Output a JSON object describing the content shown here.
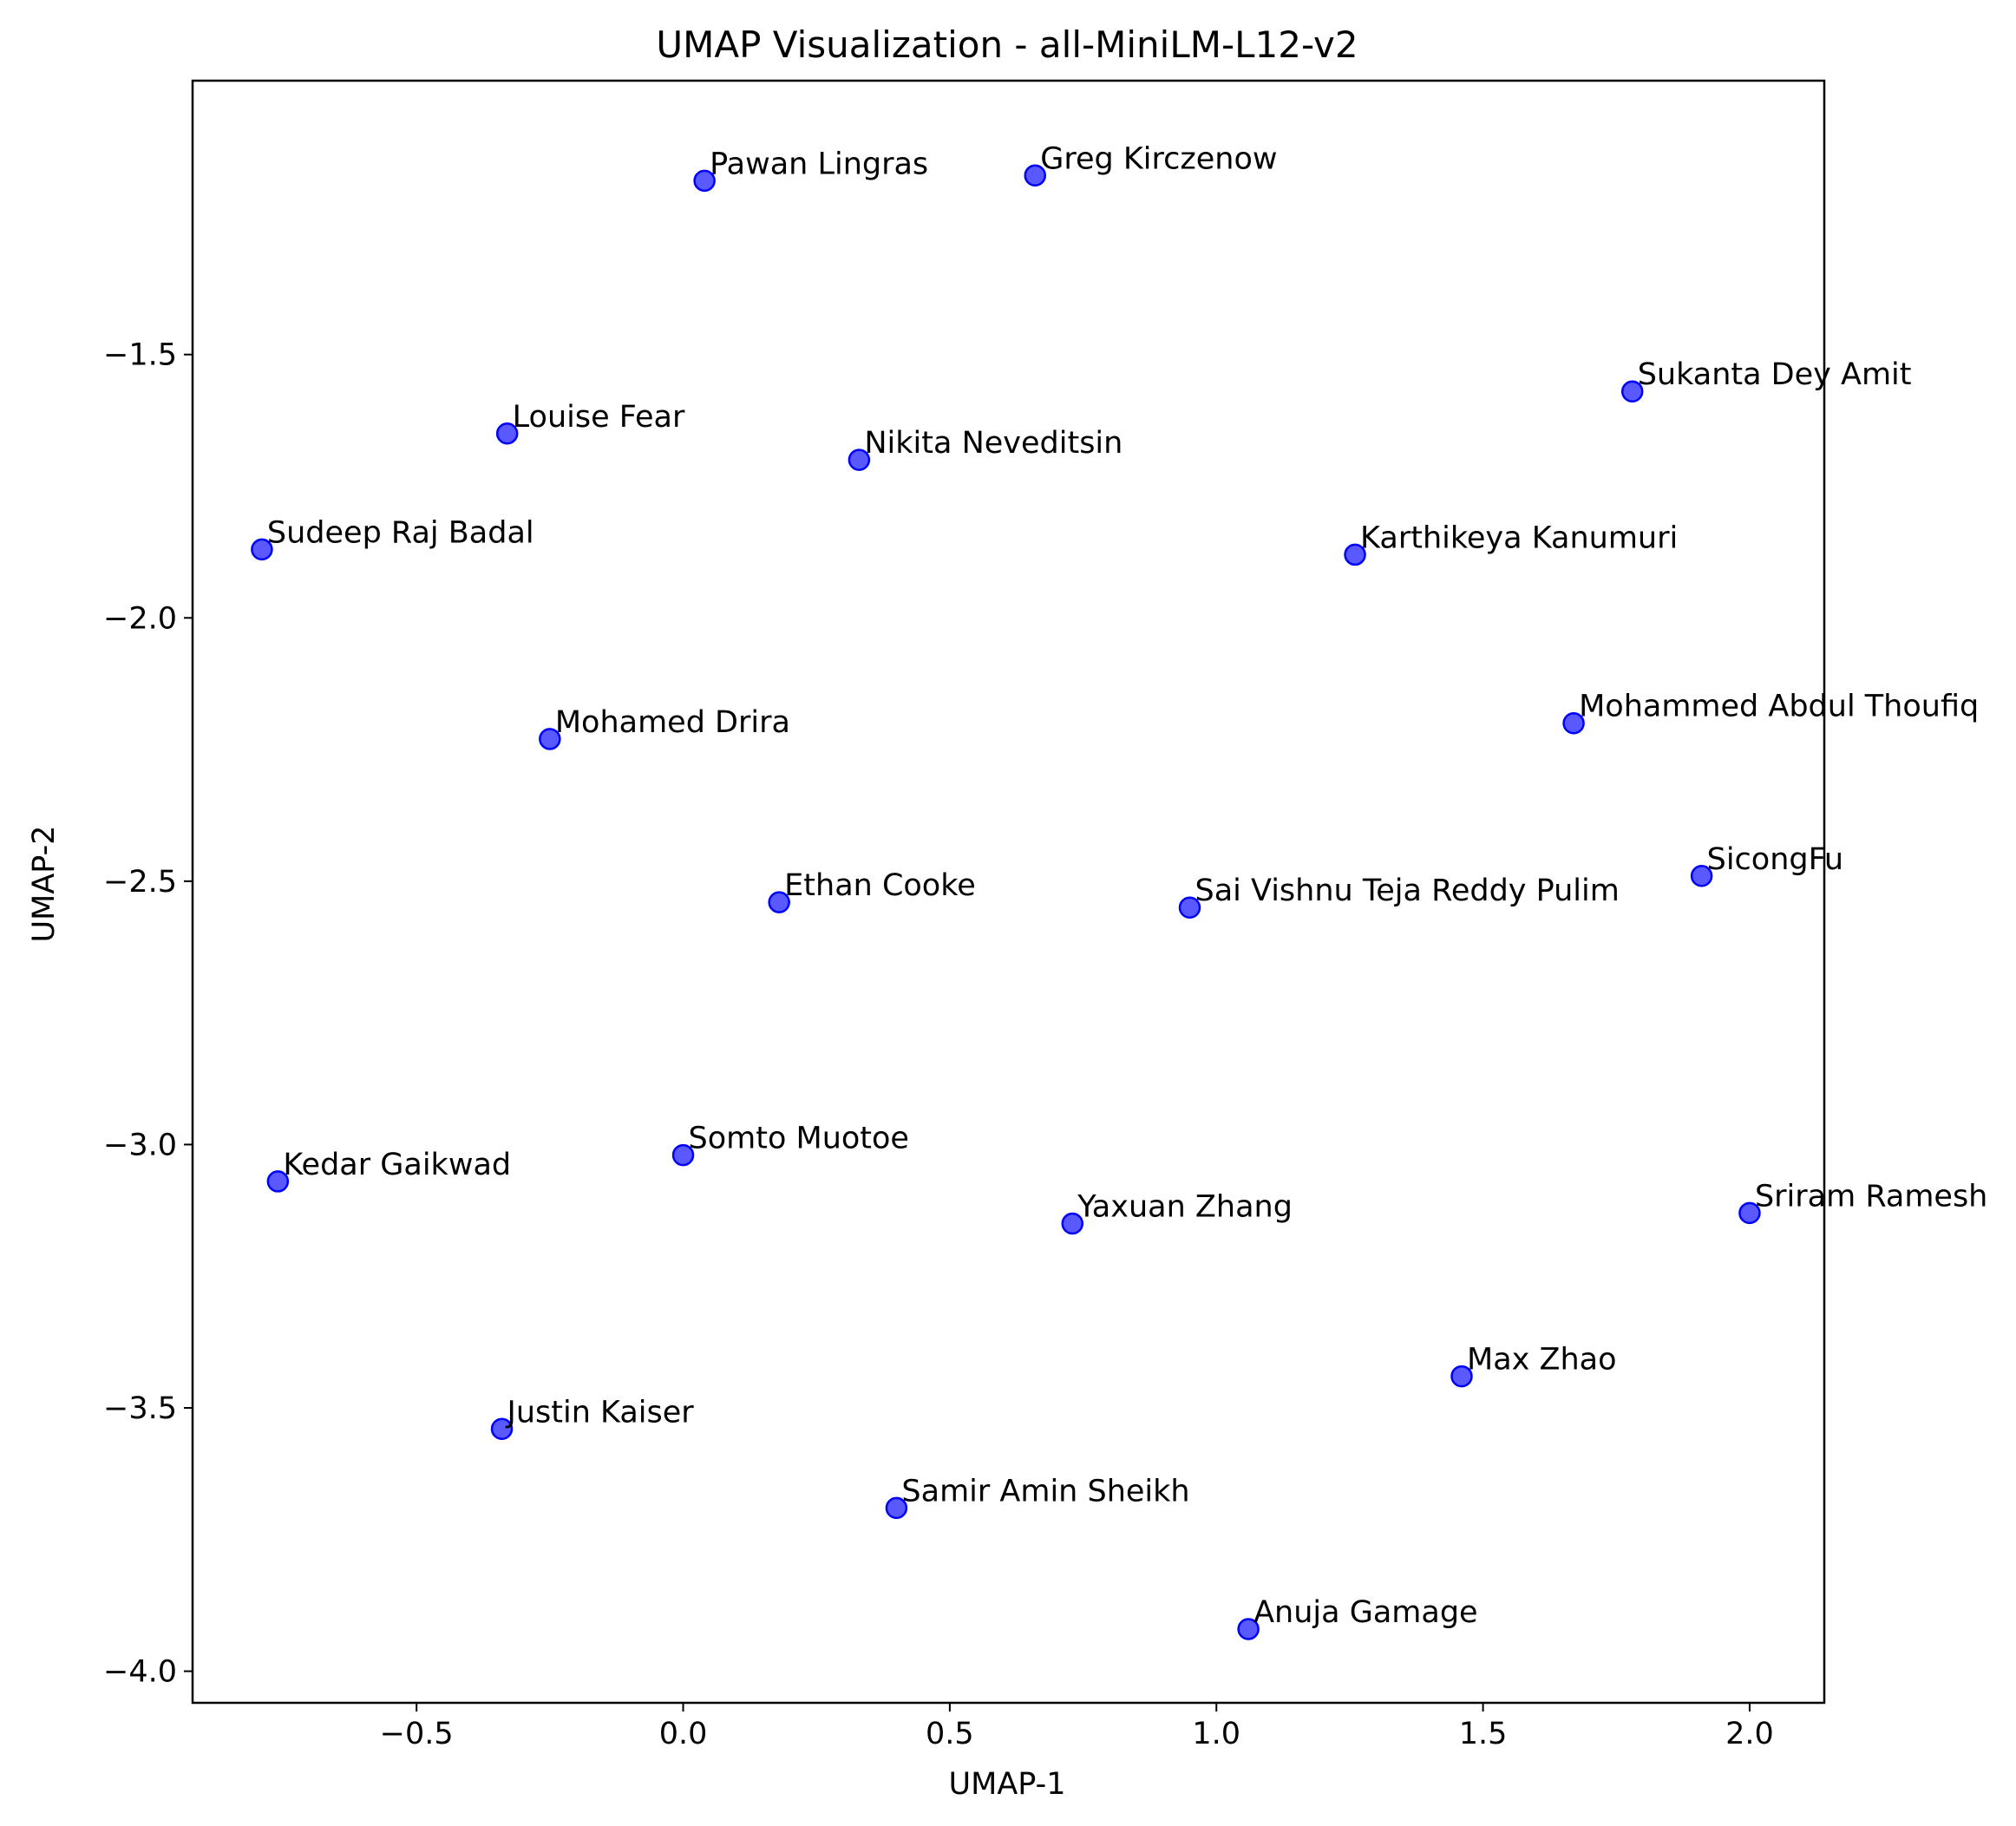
{
  "chart_data": {
    "type": "scatter",
    "title": "UMAP Visualization - all-MiniLM-L12-v2",
    "xlabel": "UMAP-1",
    "ylabel": "UMAP-2",
    "xlim": [
      -0.92,
      2.14
    ],
    "ylim": [
      -4.06,
      -0.98
    ],
    "x_ticks": [
      -0.5,
      0.0,
      0.5,
      1.0,
      1.5,
      2.0
    ],
    "x_tick_labels": [
      "−0.5",
      "0.0",
      "0.5",
      "1.0",
      "1.5",
      "2.0"
    ],
    "y_ticks": [
      -4.0,
      -3.5,
      -3.0,
      -2.5,
      -2.0,
      -1.5
    ],
    "y_tick_labels": [
      "−4.0",
      "−3.5",
      "−3.0",
      "−2.5",
      "−2.0",
      "−1.5"
    ],
    "grid": false,
    "marker_color": "#0000ff",
    "points": [
      {
        "label": "Pawan Lingras",
        "x": 0.04,
        "y": -1.17
      },
      {
        "label": "Greg Kirczenow",
        "x": 0.66,
        "y": -1.16
      },
      {
        "label": "Sukanta Dey Amit",
        "x": 1.78,
        "y": -1.57
      },
      {
        "label": "Louise Fear",
        "x": -0.33,
        "y": -1.65
      },
      {
        "label": "Nikita Neveditsin",
        "x": 0.33,
        "y": -1.7
      },
      {
        "label": "Sudeep Raj Badal",
        "x": -0.79,
        "y": -1.87
      },
      {
        "label": "Karthikeya Kanumuri",
        "x": 1.26,
        "y": -1.88
      },
      {
        "label": "Mohamed Drira",
        "x": -0.25,
        "y": -2.23
      },
      {
        "label": "Mohammed Abdul Thoufiq",
        "x": 1.67,
        "y": -2.2
      },
      {
        "label": "Ethan Cooke",
        "x": 0.18,
        "y": -2.54
      },
      {
        "label": "Sai Vishnu Teja Reddy Pulim",
        "x": 0.95,
        "y": -2.55
      },
      {
        "label": "SicongFu",
        "x": 1.91,
        "y": -2.49
      },
      {
        "label": "Somto Muotoe",
        "x": 0.0,
        "y": -3.02
      },
      {
        "label": "Kedar Gaikwad",
        "x": -0.76,
        "y": -3.07
      },
      {
        "label": "Yaxuan Zhang",
        "x": 0.73,
        "y": -3.15
      },
      {
        "label": "Sriram Ramesh",
        "x": 2.0,
        "y": -3.13
      },
      {
        "label": "Max Zhao",
        "x": 1.46,
        "y": -3.44
      },
      {
        "label": "Justin Kaiser",
        "x": -0.34,
        "y": -3.54
      },
      {
        "label": "Samir Amin Sheikh",
        "x": 0.4,
        "y": -3.69
      },
      {
        "label": "Anuja Gamage",
        "x": 1.06,
        "y": -3.92
      }
    ]
  }
}
